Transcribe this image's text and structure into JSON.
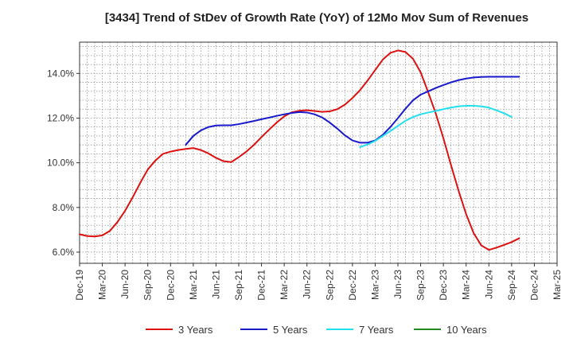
{
  "chart_data": {
    "type": "line",
    "title": "[3434]  Trend of StDev of Growth Rate (YoY) of 12Mo Mov Sum of Revenues",
    "xlabel": "",
    "ylabel": "",
    "ylim": [
      5.5,
      15.4
    ],
    "yticks": [
      6.0,
      8.0,
      10.0,
      12.0,
      14.0
    ],
    "ytick_labels": [
      "6.0%",
      "8.0%",
      "10.0%",
      "12.0%",
      "14.0%"
    ],
    "x_tick_labels": [
      "Dec-19",
      "Mar-20",
      "Jun-20",
      "Sep-20",
      "Dec-20",
      "Mar-21",
      "Jun-21",
      "Sep-21",
      "Dec-21",
      "Mar-22",
      "Jun-22",
      "Sep-22",
      "Dec-22",
      "Mar-23",
      "Jun-23",
      "Sep-23",
      "Dec-23",
      "Mar-24",
      "Jun-24",
      "Sep-24",
      "Dec-24",
      "Mar-25"
    ],
    "grid": true,
    "legend_position": "bottom",
    "series": [
      {
        "name": "3 Years",
        "color": "#dd1111",
        "start_index": 0,
        "values": [
          6.8,
          6.72,
          6.7,
          6.75,
          6.95,
          7.35,
          7.85,
          8.45,
          9.1,
          9.7,
          10.1,
          10.4,
          10.5,
          10.57,
          10.62,
          10.66,
          10.57,
          10.42,
          10.22,
          10.07,
          10.03,
          10.25,
          10.5,
          10.8,
          11.15,
          11.48,
          11.8,
          12.08,
          12.26,
          12.33,
          12.35,
          12.32,
          12.28,
          12.3,
          12.4,
          12.6,
          12.9,
          13.25,
          13.68,
          14.15,
          14.62,
          14.92,
          15.03,
          14.96,
          14.65,
          14.05,
          13.15,
          12.2,
          11.1,
          9.9,
          8.75,
          7.7,
          6.85,
          6.3,
          6.1,
          6.2,
          6.32,
          6.45,
          6.62
        ]
      },
      {
        "name": "5 Years",
        "color": "#1a1acc",
        "start_index": 14,
        "values": [
          10.8,
          11.2,
          11.45,
          11.6,
          11.67,
          11.68,
          11.68,
          11.73,
          11.8,
          11.87,
          11.95,
          12.02,
          12.1,
          12.17,
          12.23,
          12.27,
          12.25,
          12.17,
          12.03,
          11.8,
          11.53,
          11.23,
          11.0,
          10.9,
          10.9,
          11.0,
          11.25,
          11.6,
          12.0,
          12.42,
          12.8,
          13.05,
          13.2,
          13.35,
          13.48,
          13.6,
          13.7,
          13.77,
          13.82,
          13.84,
          13.85,
          13.85,
          13.85,
          13.85,
          13.85
        ]
      },
      {
        "name": "7 Years",
        "color": "#22e0ee",
        "start_index": 37,
        "values": [
          10.7,
          10.82,
          10.98,
          11.2,
          11.42,
          11.65,
          11.88,
          12.05,
          12.17,
          12.25,
          12.32,
          12.4,
          12.47,
          12.53,
          12.55,
          12.55,
          12.53,
          12.47,
          12.35,
          12.22,
          12.05
        ]
      },
      {
        "name": "10 Years",
        "color": "#228822",
        "start_index": 0,
        "values": []
      }
    ]
  }
}
